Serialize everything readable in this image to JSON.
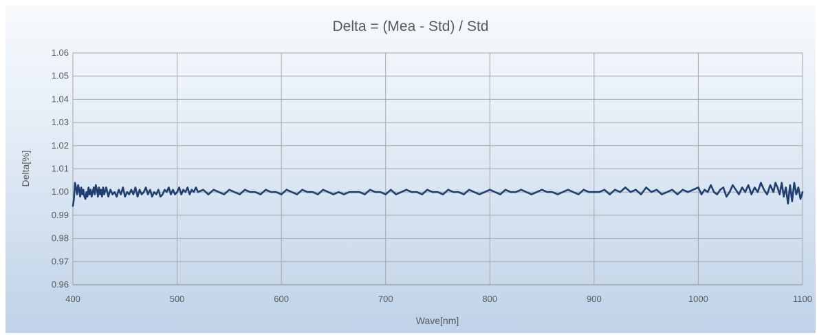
{
  "chart_data": {
    "type": "line",
    "title": "Delta = (Mea - Std) / Std",
    "xlabel": "Wave[nm]",
    "ylabel": "Delta[%]",
    "xlim": [
      400,
      1100
    ],
    "ylim": [
      0.96,
      1.06
    ],
    "xticks": [
      "400",
      "500",
      "600",
      "700",
      "800",
      "900",
      "1000",
      "1100"
    ],
    "yticks": [
      "1.06",
      "1.05",
      "1.04",
      "1.03",
      "1.02",
      "1.01",
      "1.00",
      "0.99",
      "0.98",
      "0.97",
      "0.96"
    ],
    "grid": true,
    "legend": "none",
    "series": [
      {
        "color": "#1f3f73",
        "x": [
          400,
          401,
          402,
          403,
          404,
          405,
          406,
          407,
          408,
          409,
          410,
          411,
          412,
          413,
          414,
          415,
          416,
          417,
          418,
          419,
          420,
          421,
          422,
          423,
          424,
          425,
          426,
          427,
          428,
          429,
          430,
          432,
          434,
          436,
          438,
          440,
          442,
          444,
          446,
          448,
          450,
          452,
          454,
          456,
          458,
          460,
          462,
          464,
          466,
          468,
          470,
          472,
          474,
          476,
          478,
          480,
          482,
          484,
          486,
          488,
          490,
          492,
          494,
          496,
          498,
          500,
          502,
          504,
          506,
          508,
          510,
          512,
          514,
          516,
          518,
          520,
          525,
          530,
          535,
          540,
          545,
          550,
          555,
          560,
          565,
          570,
          575,
          580,
          585,
          590,
          595,
          600,
          605,
          610,
          615,
          620,
          625,
          630,
          635,
          640,
          645,
          650,
          655,
          660,
          665,
          670,
          675,
          680,
          685,
          690,
          695,
          700,
          705,
          710,
          715,
          720,
          725,
          730,
          735,
          740,
          745,
          750,
          755,
          760,
          765,
          770,
          775,
          780,
          785,
          790,
          795,
          800,
          805,
          810,
          815,
          820,
          825,
          830,
          835,
          840,
          845,
          850,
          855,
          860,
          865,
          870,
          875,
          880,
          885,
          890,
          895,
          900,
          905,
          910,
          915,
          920,
          925,
          930,
          935,
          940,
          945,
          950,
          955,
          960,
          965,
          970,
          975,
          980,
          985,
          990,
          995,
          1000,
          1003,
          1006,
          1009,
          1012,
          1015,
          1018,
          1021,
          1024,
          1027,
          1030,
          1033,
          1036,
          1039,
          1042,
          1045,
          1048,
          1051,
          1054,
          1057,
          1060,
          1063,
          1066,
          1069,
          1072,
          1074,
          1076,
          1078,
          1080,
          1082,
          1084,
          1086,
          1088,
          1090,
          1092,
          1094,
          1096,
          1098,
          1100
        ],
        "y": [
          0.994,
          0.997,
          1.004,
          1.002,
          0.999,
          1.003,
          1.001,
          0.998,
          1.002,
          0.999,
          1.001,
          0.998,
          0.997,
          1.0,
          0.998,
          1.002,
          0.999,
          1.001,
          0.998,
          1.0,
          1.002,
          0.999,
          1.003,
          1.001,
          0.998,
          1.002,
          0.999,
          1.001,
          0.998,
          1.002,
          0.999,
          1.002,
          0.998,
          1.001,
          0.999,
          1.0,
          0.998,
          1.001,
          0.999,
          1.002,
          0.998,
          1.0,
          0.999,
          1.001,
          0.999,
          1.002,
          0.998,
          1.001,
          0.999,
          1.0,
          1.002,
          0.999,
          1.001,
          0.998,
          1.0,
          0.999,
          1.001,
          0.998,
          0.999,
          1.001,
          1.0,
          1.002,
          0.999,
          1.001,
          0.999,
          1.0,
          1.002,
          0.999,
          1.001,
          1.0,
          1.002,
          0.999,
          1.001,
          1.0,
          1.002,
          1.0,
          1.001,
          0.999,
          1.001,
          1.0,
          0.999,
          1.001,
          1.0,
          0.999,
          1.001,
          1.0,
          1.0,
          0.999,
          1.001,
          1.0,
          1.0,
          0.999,
          1.001,
          1.0,
          0.999,
          1.001,
          1.0,
          1.0,
          0.999,
          1.001,
          1.0,
          0.999,
          1.0,
          0.999,
          1.0,
          1.0,
          1.0,
          0.999,
          1.001,
          1.0,
          1.0,
          0.999,
          1.001,
          0.999,
          1.0,
          1.001,
          1.0,
          1.0,
          0.999,
          1.001,
          1.0,
          1.0,
          0.999,
          1.001,
          1.0,
          1.0,
          0.999,
          1.001,
          1.0,
          0.999,
          1.0,
          1.001,
          1.0,
          0.999,
          1.001,
          1.0,
          1.0,
          1.001,
          1.0,
          0.999,
          1.0,
          1.001,
          1.0,
          1.0,
          0.999,
          1.0,
          1.001,
          1.0,
          0.999,
          1.001,
          1.0,
          1.0,
          1.0,
          1.001,
          0.999,
          1.001,
          1.0,
          1.002,
          1.0,
          1.001,
          0.999,
          1.002,
          1.0,
          1.001,
          0.999,
          1.0,
          1.001,
          0.999,
          1.001,
          1.0,
          1.001,
          1.002,
          0.999,
          1.001,
          1.0,
          1.003,
          1.0,
          0.999,
          1.001,
          1.002,
          0.998,
          1.0,
          1.003,
          1.001,
          0.999,
          1.002,
          1.0,
          1.003,
          0.999,
          1.002,
          1.0,
          1.004,
          1.001,
          0.999,
          1.003,
          1.0,
          1.004,
          1.002,
          0.999,
          1.004,
          0.998,
          1.002,
          0.995,
          1.003,
          0.996,
          1.004,
          0.999,
          1.002,
          0.997,
          1.0
        ]
      }
    ]
  }
}
